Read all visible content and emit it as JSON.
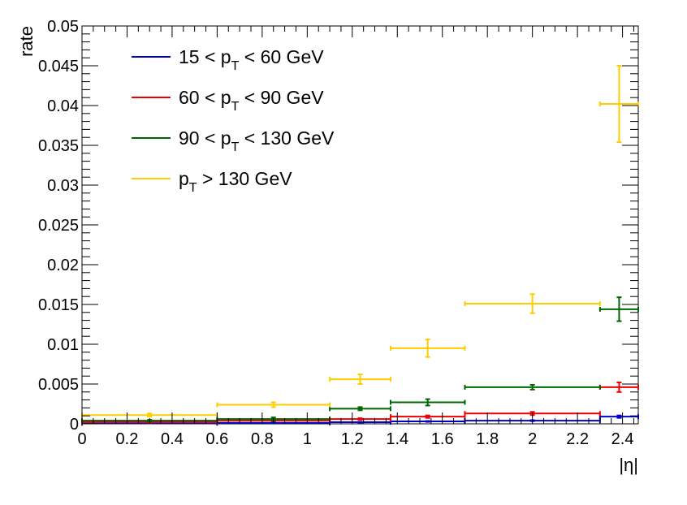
{
  "chart_data": {
    "type": "scatter",
    "xlabel": "|η|",
    "ylabel": "rate",
    "xlim": [
      0,
      2.47
    ],
    "ylim": [
      0,
      0.05
    ],
    "x_ticks": [
      "0",
      "0.2",
      "0.4",
      "0.6",
      "0.8",
      "1",
      "1.2",
      "1.4",
      "1.6",
      "1.8",
      "2",
      "2.2",
      "2.4"
    ],
    "y_ticks": [
      "0",
      "0.005",
      "0.01",
      "0.015",
      "0.02",
      "0.025",
      "0.03",
      "0.035",
      "0.04",
      "0.045",
      "0.05"
    ],
    "grid": false,
    "legend_position": "top-left",
    "bins": [
      [
        0,
        0.6
      ],
      [
        0.6,
        1.1
      ],
      [
        1.1,
        1.37
      ],
      [
        1.37,
        1.7
      ],
      [
        1.7,
        2.3
      ],
      [
        2.3,
        2.47
      ]
    ],
    "series": [
      {
        "legend_prefix": "15 < p",
        "legend_sub": "T",
        "legend_suffix": " < 60 GeV",
        "color": "#0000cc",
        "values": [
          8e-05,
          0.00012,
          0.0002,
          0.0003,
          0.0004,
          0.0009
        ],
        "errors": [
          2e-05,
          2e-05,
          4e-05,
          5e-05,
          6e-05,
          0.00015
        ]
      },
      {
        "legend_prefix": "60 < p",
        "legend_sub": "T",
        "legend_suffix": " < 90 GeV",
        "color": "#ee0000",
        "values": [
          0.0002,
          0.0004,
          0.0006,
          0.0009,
          0.0013,
          0.0046
        ],
        "errors": [
          4e-05,
          6e-05,
          0.0001,
          0.00015,
          0.0002,
          0.0006
        ]
      },
      {
        "legend_prefix": "90 < p",
        "legend_sub": "T",
        "legend_suffix": " < 130 GeV",
        "color": "#006400",
        "values": [
          0.0004,
          0.0006,
          0.0019,
          0.0027,
          0.0046,
          0.0144
        ],
        "errors": [
          0.0001,
          0.0002,
          0.0002,
          0.0004,
          0.0003,
          0.0015
        ]
      },
      {
        "legend_prefix": "p",
        "legend_sub": "T",
        "legend_suffix": " > 130 GeV",
        "color": "#ffcc00",
        "values": [
          0.0011,
          0.0024,
          0.0056,
          0.0095,
          0.0151,
          0.0402
        ],
        "errors": [
          0.0002,
          0.0003,
          0.0006,
          0.0011,
          0.0012,
          0.0048
        ]
      }
    ]
  }
}
